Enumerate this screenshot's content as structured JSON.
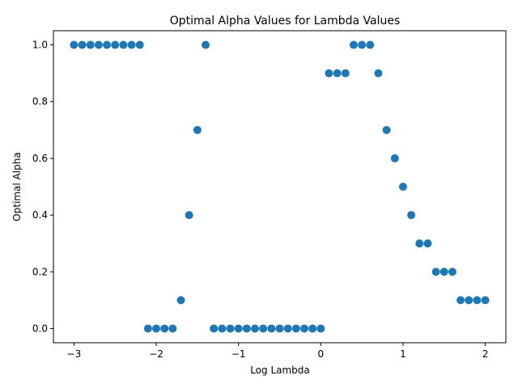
{
  "chart_data": {
    "type": "scatter",
    "title": "Optimal Alpha Values for Lambda Values",
    "xlabel": "Log Lambda",
    "ylabel": "Optimal Alpha",
    "xlim": [
      -3.25,
      2.25
    ],
    "ylim": [
      -0.05,
      1.05
    ],
    "xticks": [
      -3,
      -2,
      -1,
      0,
      1,
      2
    ],
    "xtick_labels": [
      "−3",
      "−2",
      "−1",
      "0",
      "1",
      "2"
    ],
    "yticks": [
      0.0,
      0.2,
      0.4,
      0.6,
      0.8,
      1.0
    ],
    "ytick_labels": [
      "0.0",
      "0.2",
      "0.4",
      "0.6",
      "0.8",
      "1.0"
    ],
    "grid": false,
    "marker_color": "#1f77b4",
    "x": [
      -3.0,
      -2.9,
      -2.8,
      -2.7,
      -2.6,
      -2.5,
      -2.4,
      -2.3,
      -2.2,
      -2.1,
      -2.0,
      -1.9,
      -1.8,
      -1.7,
      -1.6,
      -1.5,
      -1.4,
      -1.3,
      -1.2,
      -1.1,
      -1.0,
      -0.9,
      -0.8,
      -0.7,
      -0.6,
      -0.5,
      -0.4,
      -0.3,
      -0.2,
      -0.1,
      0.0,
      0.1,
      0.2,
      0.3,
      0.4,
      0.5,
      0.6,
      0.7,
      0.8,
      0.9,
      1.0,
      1.1,
      1.2,
      1.3,
      1.4,
      1.5,
      1.6,
      1.7,
      1.8,
      1.9,
      2.0
    ],
    "y": [
      1.0,
      1.0,
      1.0,
      1.0,
      1.0,
      1.0,
      1.0,
      1.0,
      1.0,
      0.0,
      0.0,
      0.0,
      0.0,
      0.1,
      0.4,
      0.7,
      1.0,
      0.0,
      0.0,
      0.0,
      0.0,
      0.0,
      0.0,
      0.0,
      0.0,
      0.0,
      0.0,
      0.0,
      0.0,
      0.0,
      0.0,
      0.9,
      0.9,
      0.9,
      1.0,
      1.0,
      1.0,
      0.9,
      0.7,
      0.6,
      0.5,
      0.4,
      0.3,
      0.3,
      0.2,
      0.2,
      0.2,
      0.1,
      0.1,
      0.1,
      0.1
    ]
  }
}
